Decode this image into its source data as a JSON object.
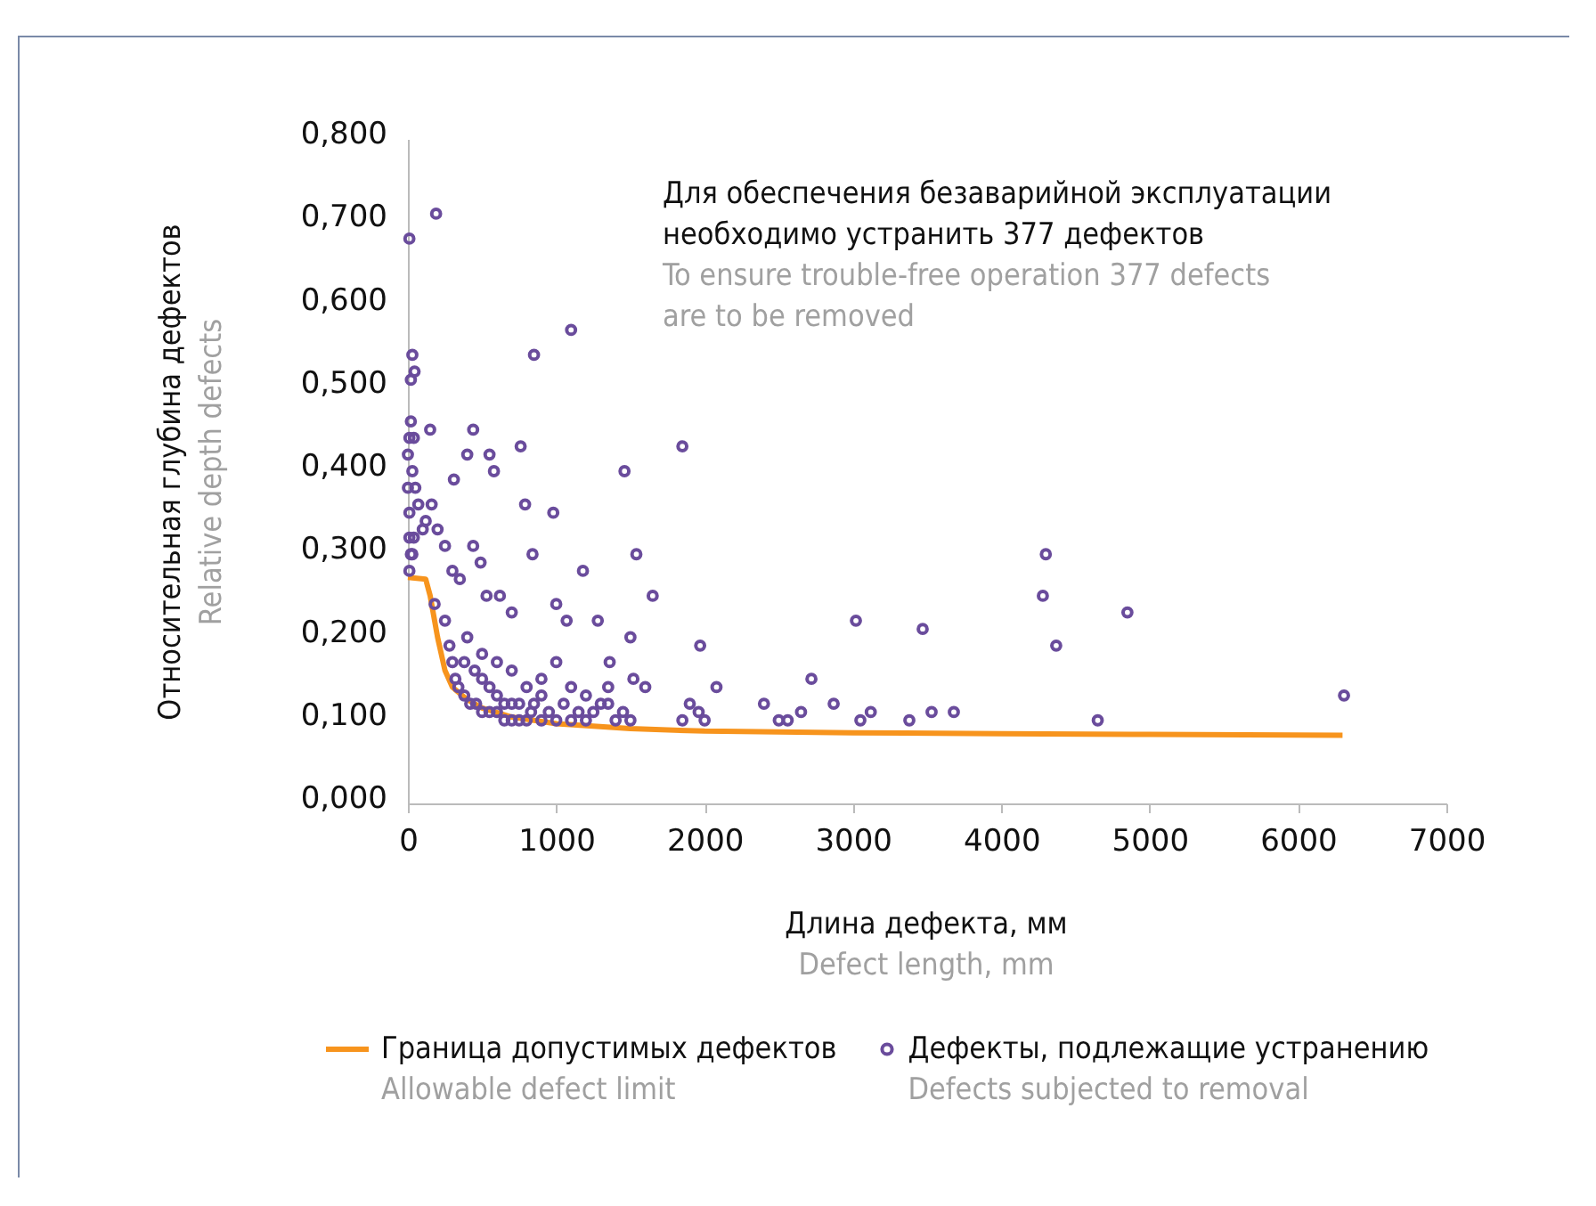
{
  "chart_data": {
    "type": "scatter",
    "xlabel": "Длина дефекта, мм\nDefect length, mm",
    "ylabel": "Относительная глубина дефектов\nRelative depth defects",
    "annotations": [
      "Для обеспечения безаварийной эксплуатации\nнеобходимо устранить 377 дефектов",
      "To ensure trouble-free operation 377 defects\nare to be removed"
    ],
    "xlim": [
      0,
      7000
    ],
    "xticks": [
      0,
      1000,
      2000,
      3000,
      4000,
      5000,
      6000,
      7000
    ],
    "ylim": [
      0,
      0.8
    ],
    "yticks": [
      {
        "value": 0,
        "label": "0,000"
      },
      {
        "value": 0.1,
        "label": "0,100"
      },
      {
        "value": 0.2,
        "label": "0,200"
      },
      {
        "value": 0.3,
        "label": "0,300"
      },
      {
        "value": 0.4,
        "label": "0,400"
      },
      {
        "value": 0.5,
        "label": "0,500"
      },
      {
        "value": 0.6,
        "label": "0,600"
      },
      {
        "value": 0.7,
        "label": "0,700"
      },
      {
        "value": 0.8,
        "label": "0,800"
      }
    ],
    "grid": false,
    "legend": "bottom",
    "series": [
      {
        "type": "line",
        "name": "Граница допустимых дефектов\nAllowable defect limit",
        "color": "#f7941d",
        "marker": "none",
        "line_style": "solid",
        "x": [
          0,
          120,
          150,
          200,
          250,
          300,
          400,
          500,
          700,
          1000,
          1500,
          2000,
          3000,
          4000,
          5000,
          6300
        ],
        "values": [
          0.272,
          0.27,
          0.25,
          0.2,
          0.16,
          0.14,
          0.125,
          0.115,
          0.104,
          0.096,
          0.09,
          0.087,
          0.085,
          0.084,
          0.083,
          0.082
        ]
      },
      {
        "name": "Дефекты, подлежащие устранению\nDefects subjected to removal",
        "color": "#6a4c9c",
        "x": [
          3020,
          3470,
          4300,
          4280,
          4370,
          4850,
          4650,
          6310,
          2400,
          2500,
          2560,
          2650,
          2720,
          2870,
          3050,
          3120,
          3380,
          3530,
          3680,
          2080,
          1970,
          1960,
          2000,
          1850,
          1900,
          10,
          190,
          1100,
          850,
          1850,
          1460,
          760,
          980,
          1540,
          1180,
          30,
          20,
          45,
          150,
          440,
          400,
          550,
          580,
          20,
          40,
          310,
          790,
          30,
          50,
          70,
          100,
          30,
          10,
          40,
          120,
          160,
          200,
          250,
          300,
          350,
          440,
          490,
          530,
          620,
          700,
          840,
          1000,
          1070,
          1280,
          1650,
          1360,
          1500,
          1520,
          1600,
          1300,
          180,
          250,
          280,
          300,
          320,
          340,
          380,
          420,
          460,
          500,
          550,
          600,
          650,
          700,
          750,
          800,
          900,
          1000,
          1100,
          1200,
          1400,
          1500,
          380,
          450,
          500,
          550,
          600,
          650,
          700,
          750,
          830,
          850,
          900,
          950,
          1050,
          1150,
          1250,
          1350,
          400,
          500,
          600,
          700,
          800,
          900,
          1000,
          1100,
          1200,
          1350,
          1450,
          10,
          10,
          20,
          0,
          0,
          10
        ],
        "values": [
          0.22,
          0.21,
          0.3,
          0.25,
          0.19,
          0.23,
          0.1,
          0.13,
          0.12,
          0.1,
          0.1,
          0.11,
          0.15,
          0.12,
          0.1,
          0.11,
          0.1,
          0.11,
          0.11,
          0.14,
          0.19,
          0.11,
          0.1,
          0.1,
          0.12,
          0.68,
          0.71,
          0.57,
          0.54,
          0.43,
          0.4,
          0.43,
          0.35,
          0.3,
          0.28,
          0.54,
          0.51,
          0.52,
          0.45,
          0.45,
          0.42,
          0.42,
          0.4,
          0.46,
          0.44,
          0.39,
          0.36,
          0.4,
          0.38,
          0.36,
          0.33,
          0.3,
          0.28,
          0.32,
          0.34,
          0.36,
          0.33,
          0.31,
          0.28,
          0.27,
          0.31,
          0.29,
          0.25,
          0.25,
          0.23,
          0.3,
          0.24,
          0.22,
          0.22,
          0.25,
          0.17,
          0.2,
          0.15,
          0.14,
          0.12,
          0.24,
          0.22,
          0.19,
          0.17,
          0.15,
          0.14,
          0.13,
          0.12,
          0.12,
          0.11,
          0.11,
          0.11,
          0.1,
          0.1,
          0.1,
          0.1,
          0.1,
          0.1,
          0.1,
          0.1,
          0.1,
          0.1,
          0.17,
          0.16,
          0.15,
          0.14,
          0.13,
          0.12,
          0.12,
          0.12,
          0.11,
          0.12,
          0.13,
          0.11,
          0.12,
          0.11,
          0.11,
          0.12,
          0.2,
          0.18,
          0.17,
          0.16,
          0.14,
          0.15,
          0.17,
          0.14,
          0.13,
          0.14,
          0.11,
          0.35,
          0.32,
          0.3,
          0.38,
          0.42,
          0.44
        ]
      }
    ]
  }
}
